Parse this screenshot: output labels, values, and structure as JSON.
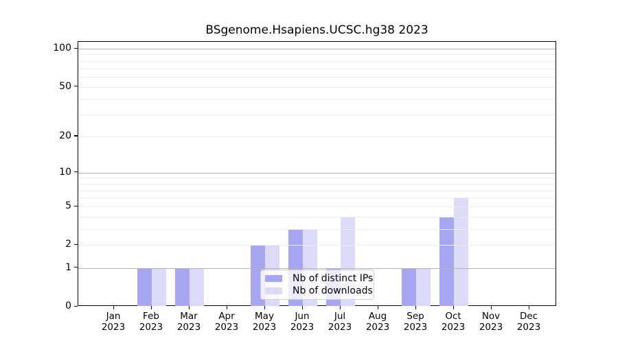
{
  "chart_data": {
    "type": "bar",
    "title": "BSgenome.Hsapiens.UCSC.hg38 2023",
    "categories": [
      "Jan",
      "Feb",
      "Mar",
      "Apr",
      "May",
      "Jun",
      "Jul",
      "Aug",
      "Sep",
      "Oct",
      "Nov",
      "Dec"
    ],
    "category_year": "2023",
    "series": [
      {
        "name": "Nb of distinct IPs",
        "key": "distinct-ips",
        "color": "#a6a6f2",
        "values": [
          0,
          1,
          1,
          0,
          2,
          3,
          1,
          0,
          1,
          4,
          0,
          0
        ]
      },
      {
        "name": "Nb of downloads",
        "key": "downloads",
        "color": "#dbdbf9",
        "values": [
          0,
          1,
          1,
          0,
          2,
          3,
          4,
          0,
          1,
          6,
          0,
          0
        ]
      }
    ],
    "yscale": "log1p",
    "ylim": [
      0,
      100
    ],
    "yticks": [
      0,
      1,
      2,
      5,
      10,
      20,
      50,
      100
    ],
    "major_gridlines": [
      1,
      10,
      100
    ],
    "minor_gridlines": [
      2,
      3,
      4,
      5,
      6,
      7,
      8,
      9,
      20,
      30,
      40,
      50,
      60,
      70,
      80,
      90
    ],
    "grid": true,
    "legend_position": "inside-bottom-center",
    "xlabel": "",
    "ylabel": ""
  },
  "colors": {
    "background": "#ffffff",
    "axis": "#000000",
    "major_grid": "#b3b3b3",
    "minor_grid": "#ececec",
    "legend_border": "#cccccc",
    "text": "#000000"
  }
}
